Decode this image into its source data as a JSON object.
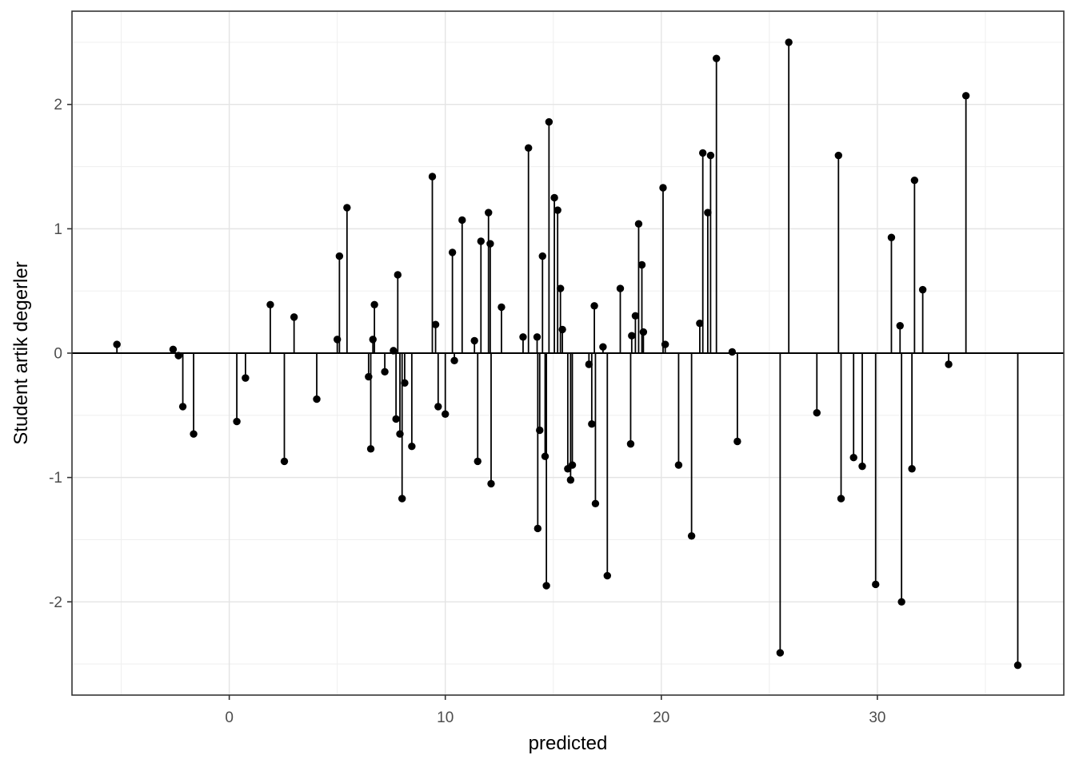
{
  "chart_data": {
    "type": "scatter",
    "subtype": "lollipop-residual",
    "title": "",
    "xlabel": "predicted",
    "ylabel": "Student artik degerler",
    "xlim": [
      -7.28,
      38.63
    ],
    "ylim": [
      -2.75,
      2.75
    ],
    "x_ticks": [
      0,
      10,
      20,
      30
    ],
    "y_ticks": [
      -2,
      -1,
      0,
      1,
      2
    ],
    "x_minor_ticks": [
      -5,
      5,
      15,
      25,
      35
    ],
    "y_minor_ticks": [
      -2.5,
      -1.5,
      -0.5,
      0.5,
      1.5,
      2.5
    ],
    "baseline": 0,
    "grid": true,
    "legend": "none",
    "colors": {
      "point": "#000000",
      "stem": "#000000",
      "baseline": "#000000",
      "grid_major": "#E4E4E4",
      "grid_minor": "#F0F0F0",
      "panel_border": "#343434",
      "tick_mark": "#333333",
      "tick_label": "#4D4D4D",
      "axis_title": "#000000",
      "background": "#FFFFFF"
    },
    "points": [
      [
        -5.2,
        0.07
      ],
      [
        -2.6,
        0.03
      ],
      [
        -2.35,
        -0.02
      ],
      [
        -2.15,
        -0.43
      ],
      [
        -1.65,
        -0.65
      ],
      [
        0.35,
        -0.55
      ],
      [
        0.75,
        -0.2
      ],
      [
        1.9,
        0.39
      ],
      [
        2.55,
        -0.87
      ],
      [
        3.0,
        0.29
      ],
      [
        4.05,
        -0.37
      ],
      [
        5.0,
        0.11
      ],
      [
        5.1,
        0.78
      ],
      [
        5.45,
        1.17
      ],
      [
        6.45,
        -0.19
      ],
      [
        6.55,
        -0.77
      ],
      [
        6.65,
        0.11
      ],
      [
        6.72,
        0.39
      ],
      [
        7.2,
        -0.15
      ],
      [
        7.6,
        0.02
      ],
      [
        7.72,
        -0.53
      ],
      [
        7.8,
        0.63
      ],
      [
        7.9,
        -0.65
      ],
      [
        8.0,
        -1.17
      ],
      [
        8.12,
        -0.24
      ],
      [
        8.45,
        -0.75
      ],
      [
        9.4,
        1.42
      ],
      [
        9.55,
        0.23
      ],
      [
        9.67,
        -0.43
      ],
      [
        10.0,
        -0.49
      ],
      [
        10.33,
        0.81
      ],
      [
        10.42,
        -0.06
      ],
      [
        10.78,
        1.07
      ],
      [
        11.35,
        0.1
      ],
      [
        11.5,
        -0.87
      ],
      [
        11.65,
        0.9
      ],
      [
        12.0,
        1.13
      ],
      [
        12.08,
        0.88
      ],
      [
        12.12,
        -1.05
      ],
      [
        12.6,
        0.37
      ],
      [
        13.6,
        0.13
      ],
      [
        13.85,
        1.65
      ],
      [
        14.25,
        0.13
      ],
      [
        14.28,
        -1.41
      ],
      [
        14.37,
        -0.62
      ],
      [
        14.5,
        0.78
      ],
      [
        14.62,
        -0.83
      ],
      [
        14.68,
        -1.87
      ],
      [
        14.8,
        1.86
      ],
      [
        15.05,
        1.25
      ],
      [
        15.2,
        1.15
      ],
      [
        15.33,
        0.52
      ],
      [
        15.42,
        0.19
      ],
      [
        15.67,
        -0.93
      ],
      [
        15.8,
        -1.02
      ],
      [
        15.88,
        -0.9
      ],
      [
        16.65,
        -0.09
      ],
      [
        16.78,
        -0.57
      ],
      [
        16.9,
        0.38
      ],
      [
        16.95,
        -1.21
      ],
      [
        17.3,
        0.05
      ],
      [
        17.5,
        -1.79
      ],
      [
        18.1,
        0.52
      ],
      [
        18.58,
        -0.73
      ],
      [
        18.63,
        0.14
      ],
      [
        18.8,
        0.3
      ],
      [
        18.95,
        1.04
      ],
      [
        19.1,
        0.71
      ],
      [
        19.17,
        0.17
      ],
      [
        20.08,
        1.33
      ],
      [
        20.18,
        0.07
      ],
      [
        20.8,
        -0.9
      ],
      [
        21.4,
        -1.47
      ],
      [
        21.78,
        0.24
      ],
      [
        21.92,
        1.61
      ],
      [
        22.15,
        1.13
      ],
      [
        22.28,
        1.59
      ],
      [
        22.55,
        2.37
      ],
      [
        23.28,
        0.01
      ],
      [
        23.52,
        -0.71
      ],
      [
        25.5,
        -2.41
      ],
      [
        25.9,
        2.5
      ],
      [
        27.2,
        -0.48
      ],
      [
        28.2,
        1.59
      ],
      [
        28.32,
        -1.17
      ],
      [
        28.9,
        -0.84
      ],
      [
        29.3,
        -0.91
      ],
      [
        29.92,
        -1.86
      ],
      [
        30.65,
        0.93
      ],
      [
        31.05,
        0.22
      ],
      [
        31.12,
        -2.0
      ],
      [
        31.6,
        -0.93
      ],
      [
        31.72,
        1.39
      ],
      [
        32.1,
        0.51
      ],
      [
        33.3,
        -0.09
      ],
      [
        34.1,
        2.07
      ],
      [
        36.5,
        -2.51
      ]
    ]
  }
}
